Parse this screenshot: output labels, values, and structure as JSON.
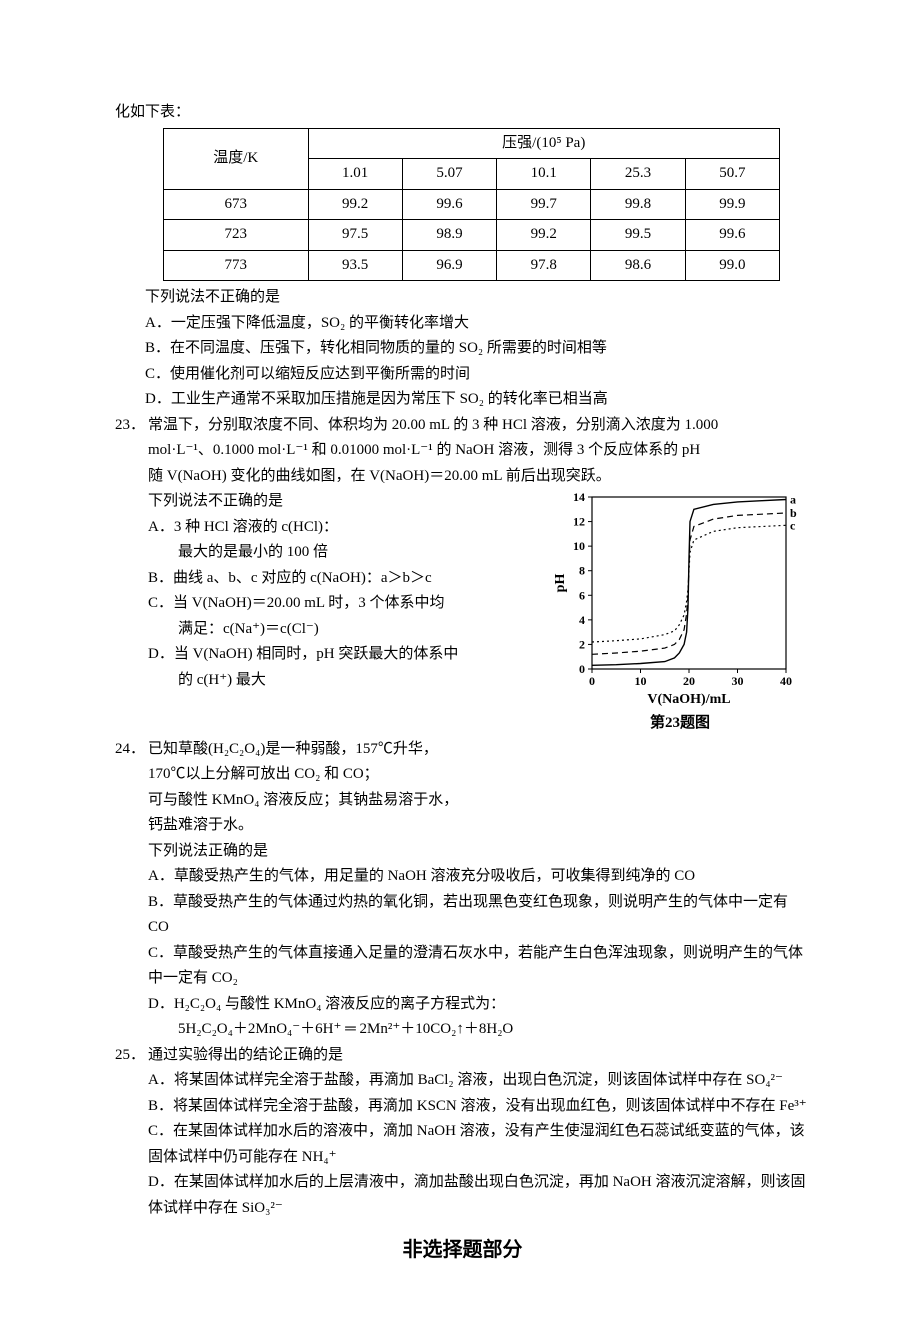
{
  "intro_fragment": "化如下表：",
  "table": {
    "row_header_label": "温度/K",
    "col_group_label": "压强/(10⁵ Pa)",
    "col_headers": [
      "1.01",
      "5.07",
      "10.1",
      "25.3",
      "50.7"
    ],
    "rows": [
      {
        "label": "673",
        "cells": [
          "99.2",
          "99.6",
          "99.7",
          "99.8",
          "99.9"
        ]
      },
      {
        "label": "723",
        "cells": [
          "97.5",
          "98.9",
          "99.2",
          "99.5",
          "99.6"
        ]
      },
      {
        "label": "773",
        "cells": [
          "93.5",
          "96.9",
          "97.8",
          "98.6",
          "99.0"
        ]
      }
    ],
    "border_color": "#000000",
    "bg_color": "#ffffff"
  },
  "q22_tail": {
    "lead": "下列说法不正确的是",
    "opts": [
      "A．一定压强下降低温度，SO₂ 的平衡转化率增大",
      "B．在不同温度、压强下，转化相同物质的量的 SO₂ 所需要的时间相等",
      "C．使用催化剂可以缩短反应达到平衡所需的时间",
      "D．工业生产通常不采取加压措施是因为常压下 SO₂ 的转化率已相当高"
    ]
  },
  "q23": {
    "num": "23．",
    "stem": [
      "常温下，分别取浓度不同、体积均为 20.00 mL 的 3 种 HCl 溶液，分别滴入浓度为 1.000",
      "mol·L⁻¹、0.1000 mol·L⁻¹ 和 0.01000 mol·L⁻¹ 的 NaOH 溶液，测得 3 个反应体系的 pH",
      "随 V(NaOH) 变化的曲线如图，在 V(NaOH)＝20.00 mL 前后出现突跃。"
    ],
    "lead": "下列说法不正确的是",
    "opts": [
      "A．3 种 HCl 溶液的 c(HCl)：",
      "　　最大的是最小的 100 倍",
      "B．曲线 a、b、c 对应的 c(NaOH)：a＞b＞c",
      "C．当 V(NaOH)＝20.00 mL 时，3 个体系中均",
      "　　满足：c(Na⁺)＝c(Cl⁻)",
      "D．当 V(NaOH) 相同时，pH 突跃最大的体系中",
      "　　的 c(H⁺) 最大"
    ],
    "chart": {
      "type": "line",
      "xlabel": "V(NaOH)/mL",
      "ylabel": "pH",
      "caption": "第23题图",
      "xlim": [
        0,
        40
      ],
      "ylim": [
        0,
        14
      ],
      "xticks": [
        0,
        10,
        20,
        30,
        40
      ],
      "yticks": [
        0,
        2,
        4,
        6,
        8,
        10,
        12,
        14
      ],
      "tick_fontsize": 12,
      "label_fontsize": 14,
      "axis_color": "#000000",
      "grid_color": "#ffffff",
      "background_color": "#ffffff",
      "series": [
        {
          "name": "a",
          "label": "a",
          "color": "#000000",
          "dash": "none",
          "width": 1.4,
          "points": [
            [
              0,
              0.3
            ],
            [
              5,
              0.35
            ],
            [
              10,
              0.45
            ],
            [
              15,
              0.6
            ],
            [
              17,
              0.9
            ],
            [
              18,
              1.3
            ],
            [
              19,
              2.0
            ],
            [
              19.5,
              3.0
            ],
            [
              19.8,
              5.0
            ],
            [
              20,
              9.0
            ],
            [
              20.2,
              12.0
            ],
            [
              21,
              13.0
            ],
            [
              25,
              13.4
            ],
            [
              30,
              13.6
            ],
            [
              35,
              13.7
            ],
            [
              40,
              13.8
            ]
          ]
        },
        {
          "name": "b",
          "label": "b",
          "color": "#000000",
          "dash": "6,4",
          "width": 1.2,
          "points": [
            [
              0,
              1.2
            ],
            [
              5,
              1.3
            ],
            [
              10,
              1.45
            ],
            [
              15,
              1.7
            ],
            [
              17,
              2.0
            ],
            [
              18,
              2.4
            ],
            [
              19,
              3.2
            ],
            [
              19.5,
              4.5
            ],
            [
              19.8,
              6.0
            ],
            [
              20,
              8.5
            ],
            [
              20.2,
              10.5
            ],
            [
              21,
              11.6
            ],
            [
              25,
              12.2
            ],
            [
              30,
              12.5
            ],
            [
              35,
              12.6
            ],
            [
              40,
              12.7
            ]
          ]
        },
        {
          "name": "c",
          "label": "c",
          "color": "#000000",
          "dash": "2,3",
          "width": 1.2,
          "points": [
            [
              0,
              2.2
            ],
            [
              5,
              2.3
            ],
            [
              10,
              2.45
            ],
            [
              15,
              2.8
            ],
            [
              17,
              3.1
            ],
            [
              18,
              3.6
            ],
            [
              19,
              4.4
            ],
            [
              19.5,
              5.5
            ],
            [
              19.8,
              6.5
            ],
            [
              20,
              8.0
            ],
            [
              20.2,
              9.5
            ],
            [
              21,
              10.5
            ],
            [
              25,
              11.2
            ],
            [
              30,
              11.5
            ],
            [
              35,
              11.6
            ],
            [
              40,
              11.7
            ]
          ]
        }
      ]
    }
  },
  "q24": {
    "num": "24．",
    "stem": [
      "已知草酸(H₂C₂O₄)是一种弱酸，157℃升华，",
      "170℃以上分解可放出 CO₂ 和 CO；",
      "可与酸性 KMnO₄ 溶液反应；其钠盐易溶于水，",
      "钙盐难溶于水。"
    ],
    "lead": "下列说法正确的是",
    "opts": [
      "A．草酸受热产生的气体，用足量的 NaOH 溶液充分吸收后，可收集得到纯净的 CO",
      "B．草酸受热产生的气体通过灼热的氧化铜，若出现黑色变红色现象，则说明产生的气体中一定有 CO",
      "C．草酸受热产生的气体直接通入足量的澄清石灰水中，若能产生白色浑浊现象，则说明产生的气体中一定有 CO₂",
      "D．H₂C₂O₄ 与酸性 KMnO₄ 溶液反应的离子方程式为：",
      "　　5H₂C₂O₄＋2MnO₄⁻＋6H⁺ ═ 2Mn²⁺＋10CO₂↑＋8H₂O"
    ]
  },
  "q25": {
    "num": "25．",
    "lead": "通过实验得出的结论正确的是",
    "opts": [
      "A．将某固体试样完全溶于盐酸，再滴加 BaCl₂ 溶液，出现白色沉淀，则该固体试样中存在 SO₄²⁻",
      "B．将某固体试样完全溶于盐酸，再滴加 KSCN 溶液，没有出现血红色，则该固体试样中不存在 Fe³⁺",
      "C．在某固体试样加水后的溶液中，滴加 NaOH 溶液，没有产生使湿润红色石蕊试纸变蓝的气体，该固体试样中仍可能存在 NH₄⁺",
      "D．在某固体试样加水后的上层清液中，滴加盐酸出现白色沉淀，再加 NaOH 溶液沉淀溶解，则该固体试样中存在 SiO₃²⁻"
    ]
  },
  "section_title": "非选择题部分"
}
